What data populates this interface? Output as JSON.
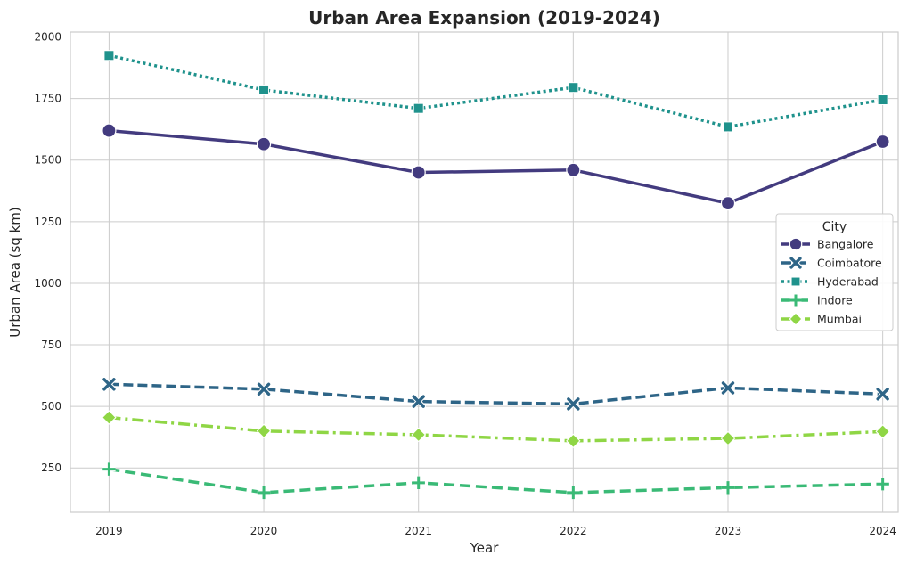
{
  "chart_data": {
    "type": "line",
    "title": "Urban Area Expansion (2019-2024)",
    "xlabel": "Year",
    "ylabel": "Urban Area (sq km)",
    "x": [
      "2019",
      "2020",
      "2021",
      "2022",
      "2023",
      "2024"
    ],
    "xlim": [
      2018.75,
      2024.1
    ],
    "ylim": [
      70,
      2020
    ],
    "yticks": [
      250,
      500,
      750,
      1000,
      1250,
      1500,
      1750,
      2000
    ],
    "grid": true,
    "legend": {
      "title": "City",
      "placement": "center-right"
    },
    "series": [
      {
        "name": "Bangalore",
        "values": [
          1620,
          1565,
          1450,
          1460,
          1325,
          1575
        ],
        "color": "#433b7f",
        "dash": "solid",
        "marker": "circle"
      },
      {
        "name": "Coimbatore",
        "values": [
          590,
          570,
          520,
          510,
          575,
          550
        ],
        "color": "#2e6587",
        "dash": "dashed",
        "marker": "x"
      },
      {
        "name": "Hyderabad",
        "values": [
          1925,
          1785,
          1710,
          1795,
          1635,
          1745
        ],
        "color": "#1f928c",
        "dash": "dotted",
        "marker": "square"
      },
      {
        "name": "Indore",
        "values": [
          245,
          150,
          190,
          150,
          170,
          185
        ],
        "color": "#3aba76",
        "dash": "dashed-long",
        "marker": "plus"
      },
      {
        "name": "Mumbai",
        "values": [
          455,
          400,
          385,
          360,
          370,
          398
        ],
        "color": "#8fd645",
        "dash": "dashdot",
        "marker": "diamond"
      }
    ]
  }
}
